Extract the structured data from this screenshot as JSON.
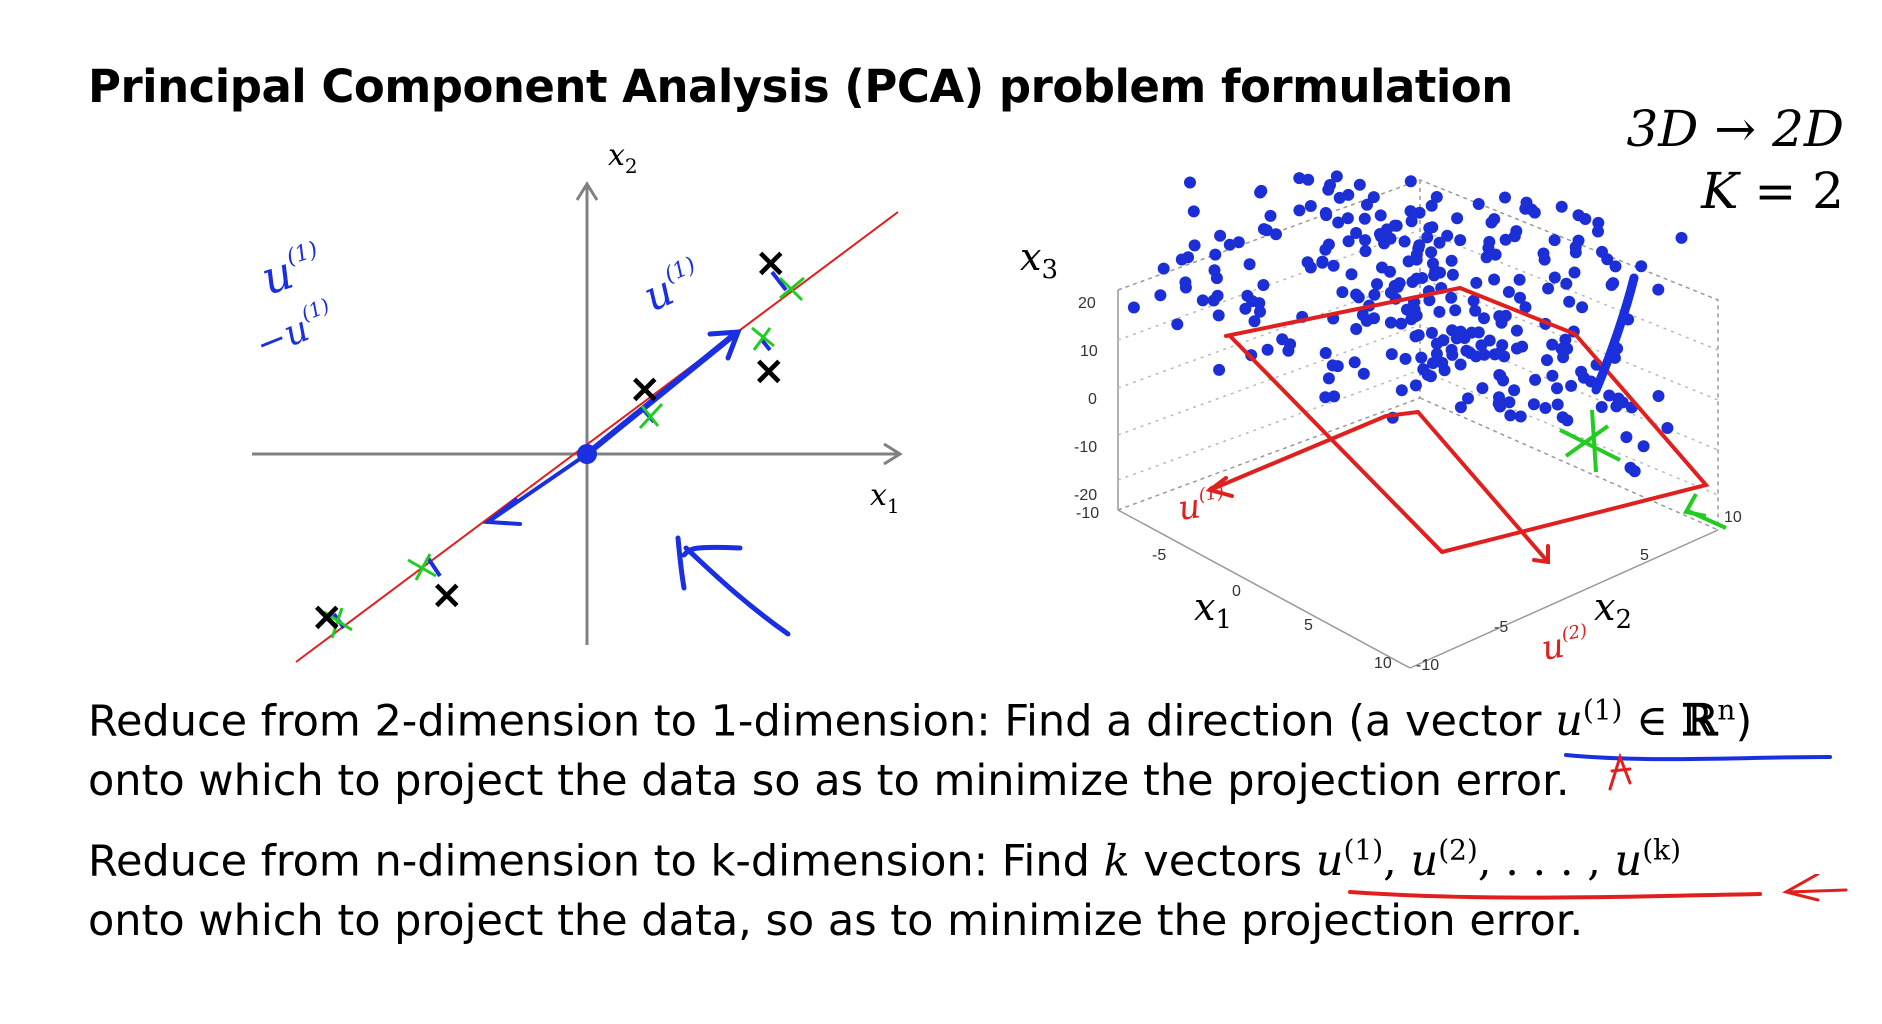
{
  "slide": {
    "title": "Principal Component Analysis (PCA) problem formulation",
    "corner_line1_a": "3D",
    "corner_line1_arrow": "→",
    "corner_line1_b": "2D",
    "corner_line2_k": "K",
    "corner_line2_eq": " = 2"
  },
  "plot2d": {
    "x_axis_label": "x",
    "x_axis_sub": "1",
    "y_axis_label": "x",
    "y_axis_sub": "2",
    "note_u1_top": "u",
    "note_u1_top_sup": "(1)",
    "note_minus_u1": "−u",
    "note_minus_u1_sup": "(1)",
    "note_u1_line": "u",
    "note_u1_line_sup": "(1)",
    "data_marker": "×"
  },
  "plot3d": {
    "z_axis_label": "x",
    "z_axis_sub": "3",
    "x_axis_label": "x",
    "x_axis_sub": "1",
    "y_axis_label": "x",
    "y_axis_sub": "2",
    "z_ticks": [
      "20",
      "10",
      "0",
      "-10",
      "-20"
    ],
    "x_ticks": [
      "-10",
      "-5",
      "0",
      "5",
      "10"
    ],
    "y_ticks": [
      "-10",
      "-5",
      "5",
      "10"
    ],
    "note_u1": "u",
    "note_u1_sup": "(1)",
    "note_u2": "u",
    "note_u2_sup": "(2)"
  },
  "text": {
    "line1_prefix": "Reduce from 2-dimension to 1-dimension: Find a direction (a vector ",
    "line1_u": "u",
    "line1_sup": "(1)",
    "line1_in": " ∈ ",
    "line1_R": "ℝ",
    "line1_n": "n",
    "line1_close": ")",
    "line2": "onto which to project the data so as to minimize the projection error.",
    "line3_prefix": "Reduce from n-dimension to k-dimension: Find ",
    "line3_k": "k",
    "line3_mid": " vectors ",
    "line3_u1": "u",
    "line3_sup1": "(1)",
    "line3_comma1": ", ",
    "line3_u2": "u",
    "line3_sup2": "(2)",
    "line3_dots": ", . . . , ",
    "line3_uk": "u",
    "line3_supk": "(k)",
    "line4": "onto which to project the data, so as to minimize the projection error."
  },
  "colors": {
    "ink_blue": "#1a2fe0",
    "ink_red": "#e0201e",
    "ink_green": "#22cc22",
    "dot_blue": "#1c2fd6",
    "axis_gray": "#808080"
  }
}
